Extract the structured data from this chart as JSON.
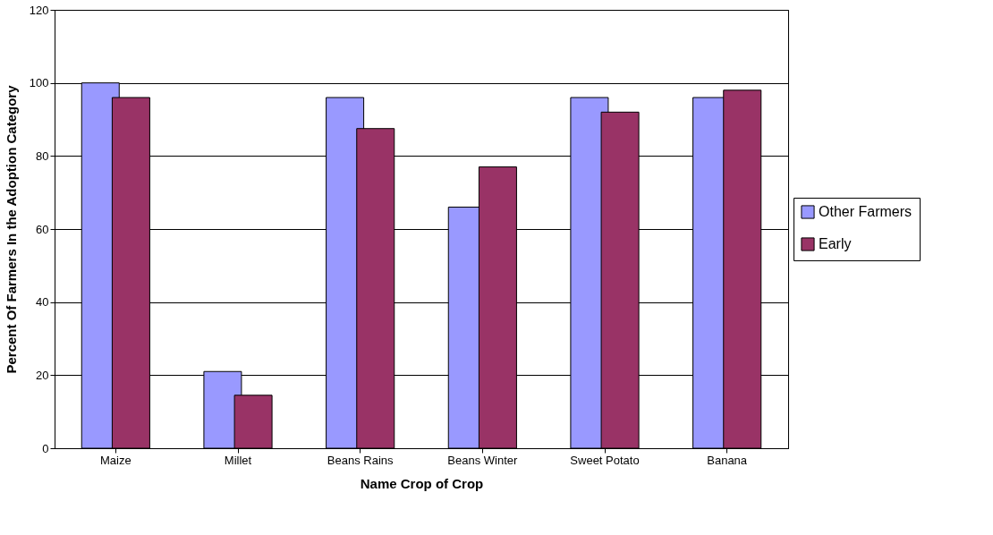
{
  "chart_data": {
    "type": "bar",
    "xlabel": "Name Crop of Crop",
    "ylabel": "Percent Of Farmers In the Adoption Category",
    "categories": [
      "Maize",
      "Millet",
      "Beans Rains",
      "Beans Winter",
      "Sweet Potato",
      "Banana"
    ],
    "series": [
      {
        "name": "Other Farmers",
        "color": "#9999ff",
        "values": [
          100,
          21,
          96,
          66,
          96,
          96
        ]
      },
      {
        "name": "Early",
        "color": "#993366",
        "values": [
          96,
          14.5,
          87.5,
          77,
          92,
          98
        ]
      }
    ],
    "ylim": [
      0,
      120
    ],
    "yticks": [
      0,
      20,
      40,
      60,
      80,
      100,
      120
    ],
    "grid": "y",
    "legend": "right"
  }
}
